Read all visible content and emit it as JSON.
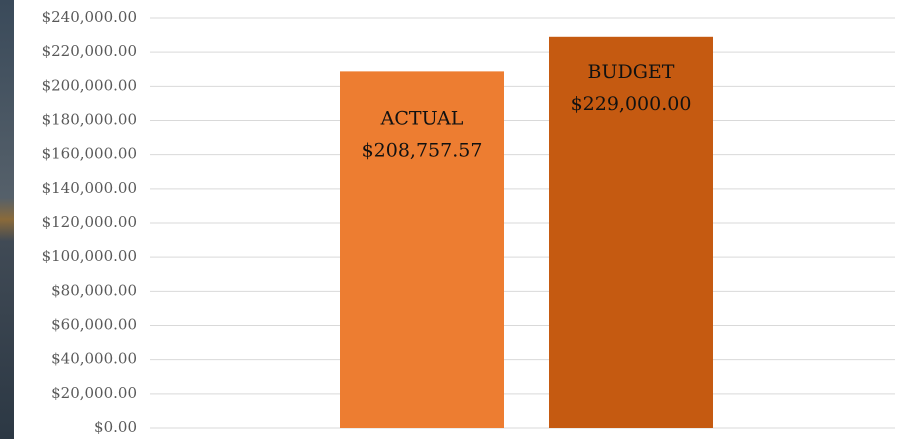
{
  "chart_data": {
    "type": "bar",
    "categories": [
      "ACTUAL",
      "BUDGET"
    ],
    "values": [
      208757.57,
      229000
    ],
    "value_labels": [
      "$208,757.57",
      "$229,000.00"
    ],
    "colors": [
      "#ED7D31",
      "#C55A11"
    ],
    "ylim": [
      0,
      240000
    ],
    "yticks": [
      {
        "value": 0,
        "label": "$0.00"
      },
      {
        "value": 20000,
        "label": "$20,000.00"
      },
      {
        "value": 40000,
        "label": "$40,000.00"
      },
      {
        "value": 60000,
        "label": "$60,000.00"
      },
      {
        "value": 80000,
        "label": "$80,000.00"
      },
      {
        "value": 100000,
        "label": "$100,000.00"
      },
      {
        "value": 120000,
        "label": "$120,000.00"
      },
      {
        "value": 140000,
        "label": "$140,000.00"
      },
      {
        "value": 160000,
        "label": "$160,000.00"
      },
      {
        "value": 180000,
        "label": "$180,000.00"
      },
      {
        "value": 200000,
        "label": "$200,000.00"
      },
      {
        "value": 220000,
        "label": "$220,000.00"
      },
      {
        "value": 240000,
        "label": "$240,000.00"
      }
    ],
    "grid": true
  }
}
